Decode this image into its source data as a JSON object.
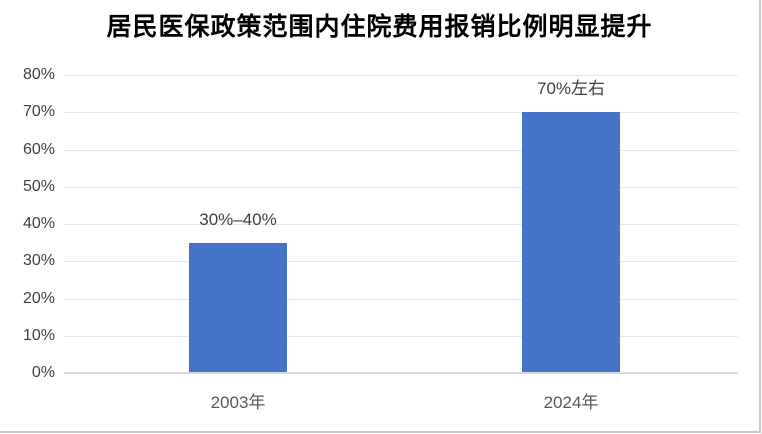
{
  "figure": {
    "background_color": "#ffffff",
    "shadow_color": "#c9c9c9"
  },
  "chart_data": {
    "type": "bar",
    "title": "居民医保政策范围内住院费用报销比例明显提升",
    "categories": [
      "2003年",
      "2024年"
    ],
    "values": [
      35,
      70
    ],
    "data_labels": [
      "30%–40%",
      "70%左右"
    ],
    "xlabel": "",
    "ylabel": "",
    "ylim": [
      0,
      80
    ],
    "ytick_step": 10,
    "ytick_labels": [
      "0%",
      "10%",
      "20%",
      "30%",
      "40%",
      "50%",
      "60%",
      "70%",
      "80%"
    ],
    "grid": "horizontal",
    "legend_position": "none",
    "bar_color": "#4573c8",
    "gridline_color": "#e7e7e7",
    "axis_line_color": "#d9d9d9",
    "ytick_color": "#404040",
    "xtick_color": "#595959",
    "data_label_color": "#404040",
    "title_color": "#000000"
  }
}
